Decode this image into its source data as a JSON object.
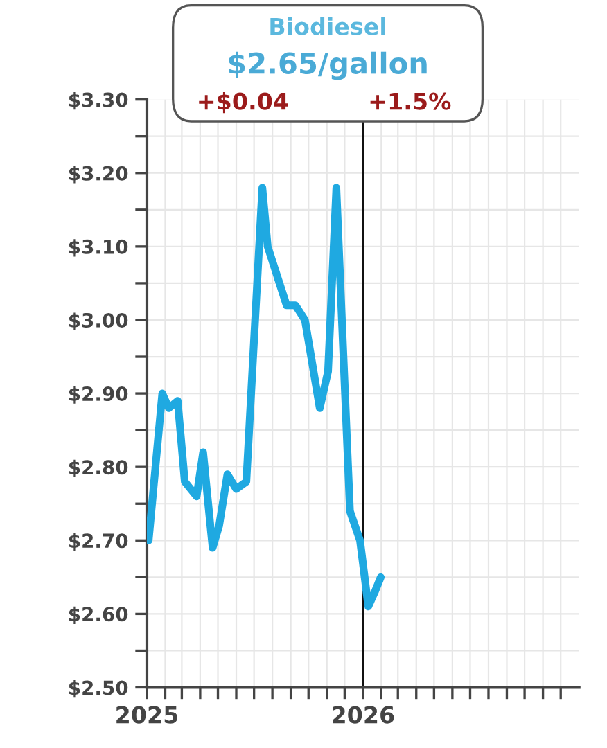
{
  "chart_data": {
    "type": "line",
    "title": "Biodiesel",
    "subtitle": "$2.65/gallon",
    "annotations": [
      "+$0.04",
      "+1.5%"
    ],
    "x": [
      "2025-01-04",
      "2025-01-27",
      "2025-02-07",
      "2025-02-22",
      "2025-03-06",
      "2025-03-26",
      "2025-04-06",
      "2025-04-22",
      "2025-05-03",
      "2025-05-17",
      "2025-06-01",
      "2025-06-18",
      "2025-07-15",
      "2025-07-24",
      "2025-08-25",
      "2025-09-09",
      "2025-09-25",
      "2025-10-20",
      "2025-11-03",
      "2025-11-17",
      "2025-12-10",
      "2025-12-27",
      "2026-01-10",
      "2026-01-21",
      "2026-01-31"
    ],
    "series": [
      {
        "color": "#1fa9e1",
        "values": [
          2.7,
          2.9,
          2.88,
          2.89,
          2.78,
          2.76,
          2.82,
          2.69,
          2.72,
          2.79,
          2.77,
          2.78,
          3.18,
          3.1,
          3.02,
          3.02,
          3.0,
          2.88,
          2.93,
          3.18,
          2.74,
          2.7,
          2.61,
          2.63,
          2.65
        ]
      }
    ],
    "xlim": [
      "2025-01-01",
      "2027-01-01"
    ],
    "xticks": [
      {
        "value": "2025-01-01",
        "label": "2025"
      },
      {
        "value": "2025-02-01",
        "label": null
      },
      {
        "value": "2025-03-01",
        "label": null
      },
      {
        "value": "2025-04-01",
        "label": null
      },
      {
        "value": "2025-05-01",
        "label": null
      },
      {
        "value": "2025-06-01",
        "label": null
      },
      {
        "value": "2025-07-01",
        "label": null
      },
      {
        "value": "2025-08-01",
        "label": null
      },
      {
        "value": "2025-09-01",
        "label": null
      },
      {
        "value": "2025-10-01",
        "label": null
      },
      {
        "value": "2025-11-01",
        "label": null
      },
      {
        "value": "2025-12-01",
        "label": null
      },
      {
        "value": "2026-01-01",
        "label": "2026"
      },
      {
        "value": "2026-02-01",
        "label": null
      },
      {
        "value": "2026-03-01",
        "label": null
      },
      {
        "value": "2026-04-01",
        "label": null
      },
      {
        "value": "2026-05-01",
        "label": null
      },
      {
        "value": "2026-06-01",
        "label": null
      },
      {
        "value": "2026-07-01",
        "label": null
      },
      {
        "value": "2026-08-01",
        "label": null
      },
      {
        "value": "2026-09-01",
        "label": null
      },
      {
        "value": "2026-10-01",
        "label": null
      },
      {
        "value": "2026-11-01",
        "label": null
      },
      {
        "value": "2026-12-01",
        "label": null
      }
    ],
    "ylim": [
      2.5,
      3.3
    ],
    "yticks": [
      {
        "value": 2.5,
        "label": "$2.50"
      },
      {
        "value": 2.55,
        "label": null
      },
      {
        "value": 2.6,
        "label": "$2.60"
      },
      {
        "value": 2.65,
        "label": null
      },
      {
        "value": 2.7,
        "label": "$2.70"
      },
      {
        "value": 2.75,
        "label": null
      },
      {
        "value": 2.8,
        "label": "$2.80"
      },
      {
        "value": 2.85,
        "label": null
      },
      {
        "value": 2.9,
        "label": "$2.90"
      },
      {
        "value": 2.95,
        "label": null
      },
      {
        "value": 3.0,
        "label": "$3.00"
      },
      {
        "value": 3.05,
        "label": null
      },
      {
        "value": 3.1,
        "label": "$3.10"
      },
      {
        "value": 3.15,
        "label": null
      },
      {
        "value": 3.2,
        "label": "$3.20"
      },
      {
        "value": 3.25,
        "label": null
      },
      {
        "value": 3.3,
        "label": "$3.30"
      }
    ],
    "ref_lines": [
      {
        "axis": "x",
        "value": "2026-01-01",
        "color": "#111111"
      }
    ],
    "grid": true,
    "legend": false,
    "marker": "none",
    "line_style": "solid"
  }
}
